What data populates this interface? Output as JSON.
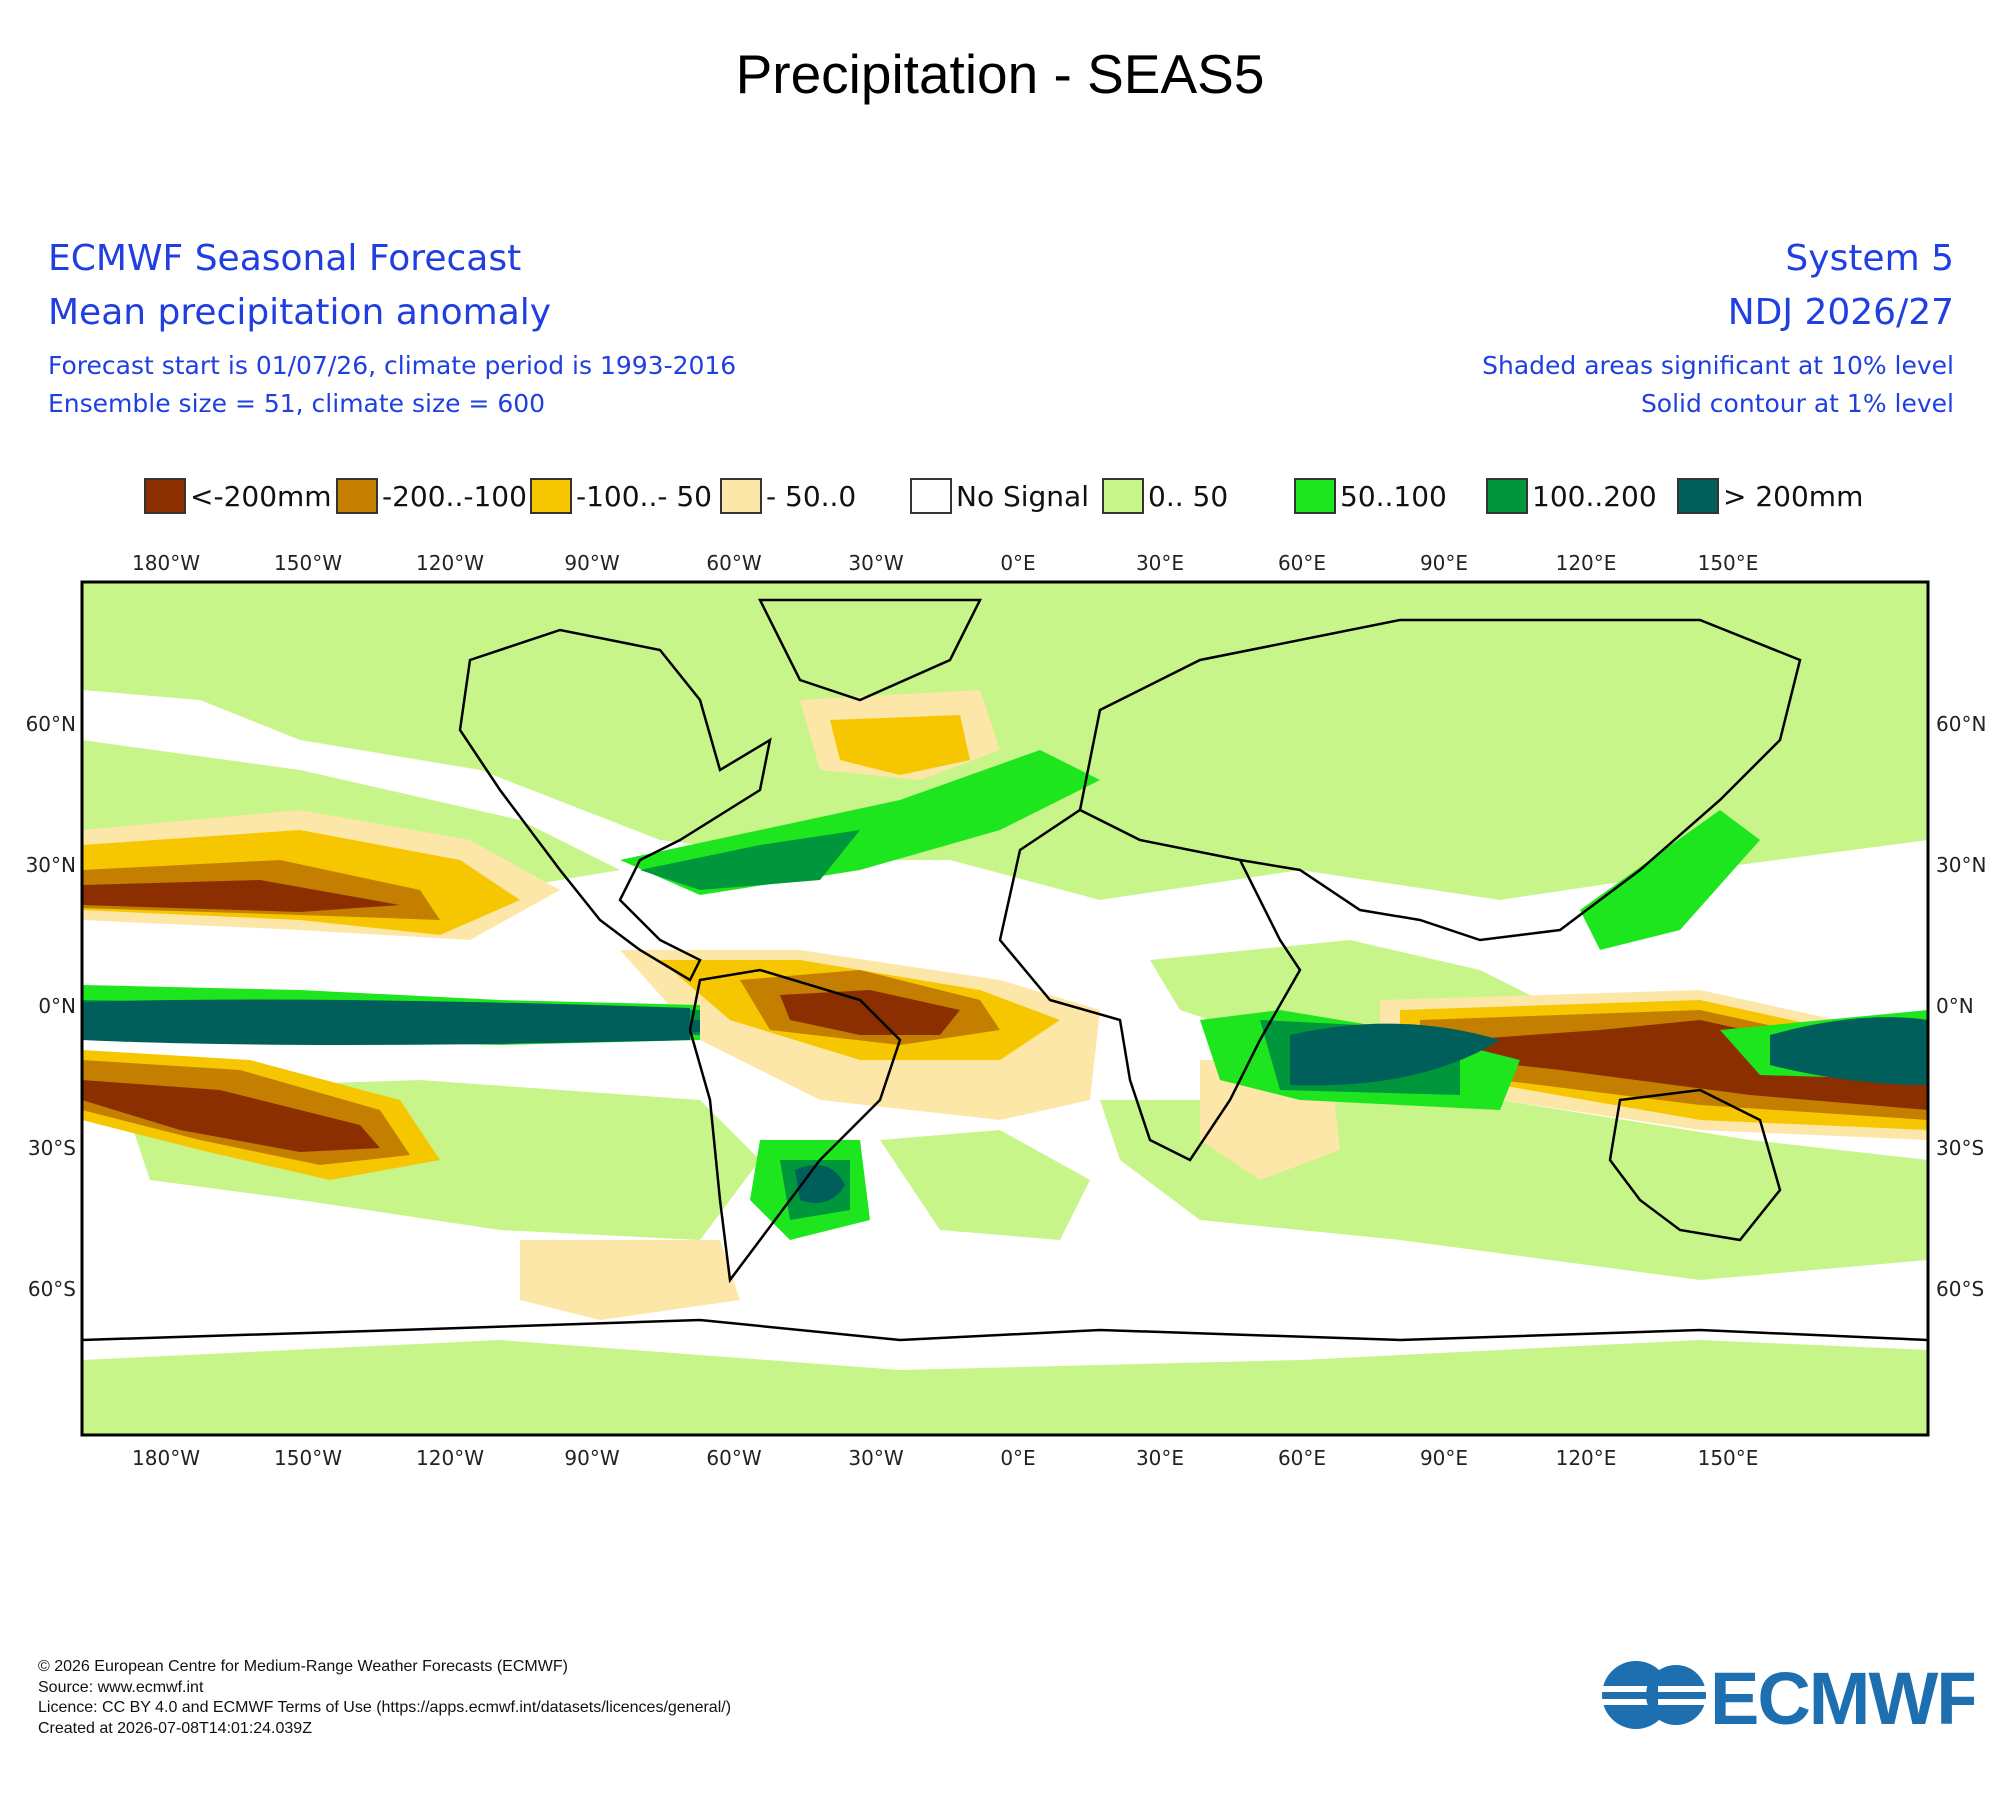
{
  "title": "Precipitation - SEAS5",
  "header": {
    "left": {
      "line1": "ECMWF Seasonal Forecast",
      "line2": "Mean precipitation anomaly",
      "line3": "Forecast start is 01/07/26, climate period is 1993-2016",
      "line4": "Ensemble size = 51, climate size = 600"
    },
    "right": {
      "line1": "System 5",
      "line2": "NDJ 2026/27",
      "line3": "Shaded areas significant at 10% level",
      "line4": "Solid contour at 1% level"
    }
  },
  "legend": [
    {
      "label": "<-200mm",
      "color": "#8b2f00"
    },
    {
      "label": "-200..-100",
      "color": "#c47f00"
    },
    {
      "label": "-100..- 50",
      "color": "#f6c700"
    },
    {
      "label": "- 50..0",
      "color": "#fde7a8"
    },
    {
      "label": "No Signal",
      "color": "#ffffff"
    },
    {
      "label": "0.. 50",
      "color": "#c8f58a"
    },
    {
      "label": "50..100",
      "color": "#1ee61e"
    },
    {
      "label": "100..200",
      "color": "#00963c"
    },
    {
      "label": "> 200mm",
      "color": "#005f5a"
    }
  ],
  "map": {
    "lon_labels": [
      "180°W",
      "150°W",
      "120°W",
      "90°W",
      "60°W",
      "30°W",
      "0°E",
      "30°E",
      "60°E",
      "90°E",
      "120°E",
      "150°E"
    ],
    "lat_labels": [
      "60°N",
      "30°N",
      "0°N",
      "30°S",
      "60°S"
    ]
  },
  "footer": {
    "line1": "© 2026 European Centre for Medium-Range Weather Forecasts (ECMWF)",
    "line2": "Source: www.ecmwf.int",
    "line3": "Licence: CC BY 4.0 and ECMWF Terms of Use (https://apps.ecmwf.int/datasets/licences/general/)",
    "line4": "Created at 2026-07-08T14:01:24.039Z"
  },
  "logo": {
    "text": "ECMWF",
    "color": "#1d6fb0"
  }
}
